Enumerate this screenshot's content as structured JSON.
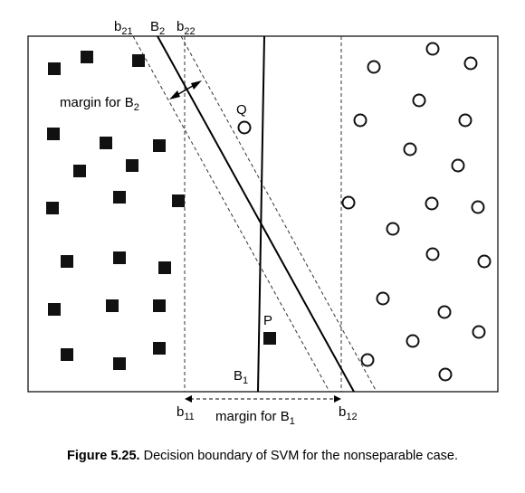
{
  "labels": {
    "b21": {
      "main": "b",
      "sub": "21"
    },
    "B2": {
      "main": "B",
      "sub": "2"
    },
    "b22": {
      "main": "b",
      "sub": "22"
    },
    "margin_B2": {
      "main": "margin for B",
      "sub": "2"
    },
    "Q": "Q",
    "P": "P",
    "B1": {
      "main": "B",
      "sub": "1"
    },
    "b11": {
      "main": "b",
      "sub": "11"
    },
    "margin_B1": {
      "main": "margin for B",
      "sub": "1"
    },
    "b12": {
      "main": "b",
      "sub": "12"
    }
  },
  "caption": {
    "number": "Figure 5.25.",
    "text": "Decision boundary of SVM for the nonseparable case."
  },
  "legend_symbols": {
    "class_square": "filled black square",
    "class_circle": "hollow circle"
  }
}
